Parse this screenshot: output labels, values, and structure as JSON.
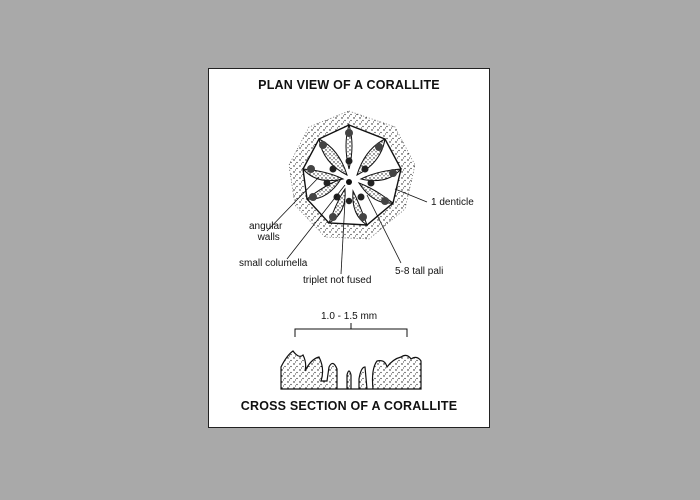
{
  "titles": {
    "top": "PLAN VIEW OF A CORALLITE",
    "bottom": "CROSS SECTION OF A CORALLITE"
  },
  "labels": {
    "denticle": "1 denticle",
    "angular_walls_line1": "angular",
    "angular_walls_line2": "walls",
    "small_columella": "small columella",
    "triplet_not_fused": "triplet not fused",
    "tall_pali": "5-8 tall pali",
    "scale": "1.0 - 1.5 mm"
  },
  "colors": {
    "background": "#a9a9a9",
    "panel": "#ffffff",
    "ink": "#111111"
  }
}
